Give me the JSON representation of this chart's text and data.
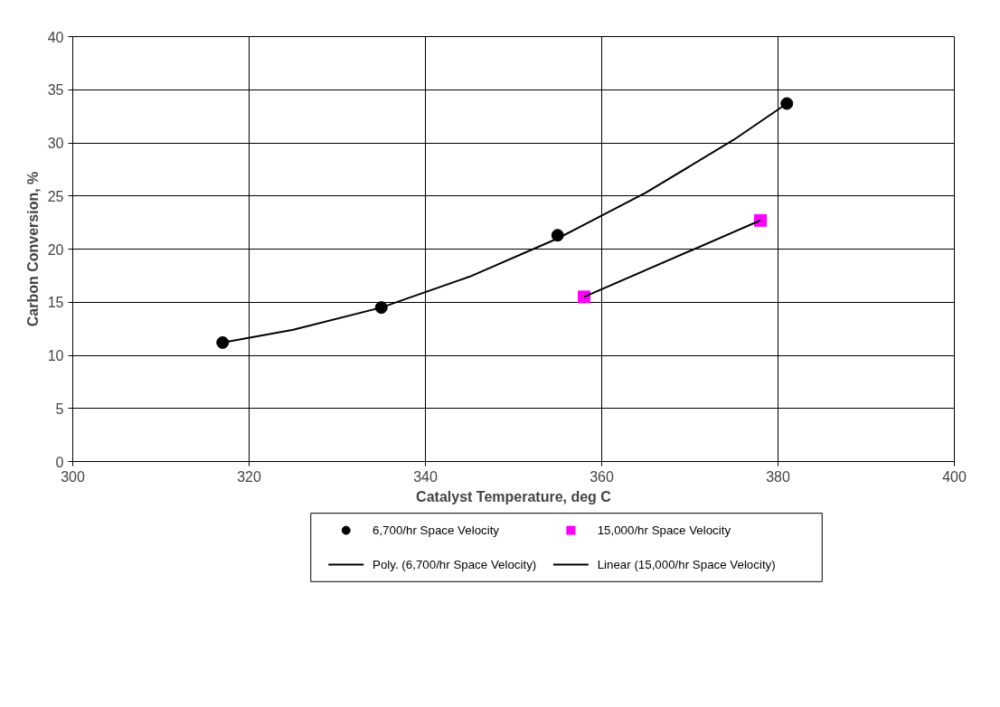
{
  "chart_data": {
    "type": "scatter",
    "xlabel": "Catalyst Temperature, deg C",
    "ylabel": "Carbon Conversion, %",
    "xlim": [
      300,
      400
    ],
    "xticks": [
      300,
      320,
      340,
      360,
      380,
      400
    ],
    "ylim": [
      0,
      40
    ],
    "yticks": [
      0,
      5,
      10,
      15,
      20,
      25,
      30,
      35,
      40
    ],
    "grid": true,
    "legend": "bottom",
    "series": [
      {
        "name": "6,700/hr Space Velocity",
        "marker": "circle",
        "color": "#000000",
        "x": [
          317,
          335,
          355,
          381
        ],
        "values": [
          11.2,
          14.5,
          21.3,
          33.7
        ]
      },
      {
        "name": "15,000/hr Space Velocity",
        "marker": "square",
        "color": "#ff00ff",
        "x": [
          358,
          378
        ],
        "values": [
          15.5,
          22.7
        ]
      },
      {
        "name": "Poly. (6,700/hr Space Velocity)",
        "type": "line",
        "color": "#000000",
        "x": [
          317,
          325,
          335,
          345,
          355,
          365,
          375,
          381
        ],
        "values": [
          11.2,
          12.4,
          14.5,
          17.4,
          21.0,
          25.3,
          30.3,
          33.7
        ]
      },
      {
        "name": "Linear (15,000/hr Space Velocity)",
        "type": "line",
        "color": "#000000",
        "x": [
          358,
          378
        ],
        "values": [
          15.5,
          22.7
        ]
      }
    ]
  }
}
